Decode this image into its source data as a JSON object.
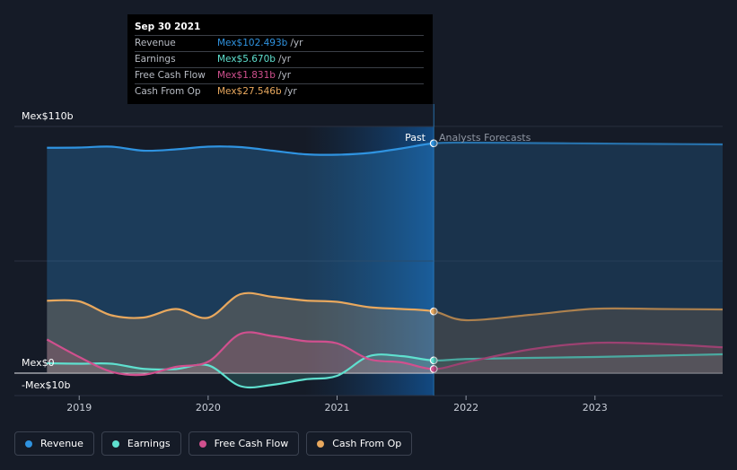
{
  "chart_data": {
    "type": "area",
    "currency_axis": {
      "top_label": "Mex$110b",
      "zero_label": "Mex$0",
      "bottom_label": "-Mex$10b"
    },
    "ylim": [
      -10,
      110
    ],
    "xlim": [
      2018.72,
      2023.99
    ],
    "x_ticks": [
      {
        "value": 2019.0,
        "label": "2019"
      },
      {
        "value": 2020.0,
        "label": "2020"
      },
      {
        "value": 2021.0,
        "label": "2021"
      },
      {
        "value": 2022.0,
        "label": "2022"
      },
      {
        "value": 2023.0,
        "label": "2023"
      }
    ],
    "present": 2021.75,
    "past_label": "Past",
    "forecast_label": "Analysts Forecasts",
    "series": [
      {
        "name": "Revenue",
        "color": "#2f93e0",
        "points": [
          [
            2018.75,
            100.5
          ],
          [
            2019.0,
            100.6
          ],
          [
            2019.25,
            101.0
          ],
          [
            2019.5,
            99.2
          ],
          [
            2019.75,
            99.8
          ],
          [
            2020.0,
            101.0
          ],
          [
            2020.25,
            100.8
          ],
          [
            2020.5,
            99.2
          ],
          [
            2020.75,
            97.6
          ],
          [
            2021.0,
            97.4
          ],
          [
            2021.25,
            98.2
          ],
          [
            2021.5,
            100.2
          ],
          [
            2021.75,
            102.49
          ],
          [
            2022.0,
            102.8
          ],
          [
            2022.5,
            102.6
          ],
          [
            2023.0,
            102.4
          ],
          [
            2023.5,
            102.2
          ],
          [
            2023.99,
            102.0
          ]
        ]
      },
      {
        "name": "Earnings",
        "color": "#5fe0cf",
        "points": [
          [
            2018.75,
            4.4
          ],
          [
            2019.0,
            4.2
          ],
          [
            2019.25,
            4.2
          ],
          [
            2019.5,
            1.9
          ],
          [
            2019.75,
            1.8
          ],
          [
            2020.0,
            3.5
          ],
          [
            2020.25,
            -5.8
          ],
          [
            2020.5,
            -5.2
          ],
          [
            2020.75,
            -2.8
          ],
          [
            2021.0,
            -1.2
          ],
          [
            2021.25,
            7.6
          ],
          [
            2021.5,
            7.6
          ],
          [
            2021.75,
            5.67
          ],
          [
            2022.0,
            6.3
          ],
          [
            2022.5,
            6.8
          ],
          [
            2023.0,
            7.2
          ],
          [
            2023.5,
            7.8
          ],
          [
            2023.99,
            8.4
          ]
        ]
      },
      {
        "name": "Free Cash Flow",
        "color": "#d0508e",
        "points": [
          [
            2018.75,
            15.0
          ],
          [
            2019.0,
            7.2
          ],
          [
            2019.25,
            0.6
          ],
          [
            2019.5,
            -0.7
          ],
          [
            2019.75,
            2.8
          ],
          [
            2020.0,
            5.1
          ],
          [
            2020.25,
            17.5
          ],
          [
            2020.5,
            16.5
          ],
          [
            2020.75,
            14.3
          ],
          [
            2021.0,
            13.3
          ],
          [
            2021.25,
            6.2
          ],
          [
            2021.5,
            4.8
          ],
          [
            2021.75,
            1.83
          ],
          [
            2022.0,
            4.8
          ],
          [
            2022.5,
            10.6
          ],
          [
            2023.0,
            13.5
          ],
          [
            2023.5,
            13.0
          ],
          [
            2023.99,
            11.5
          ]
        ]
      },
      {
        "name": "Cash From Op",
        "color": "#e8a85e",
        "points": [
          [
            2018.75,
            32.3
          ],
          [
            2019.0,
            32.0
          ],
          [
            2019.25,
            25.8
          ],
          [
            2019.5,
            24.8
          ],
          [
            2019.75,
            28.6
          ],
          [
            2020.0,
            24.7
          ],
          [
            2020.25,
            35.2
          ],
          [
            2020.5,
            34.0
          ],
          [
            2020.75,
            32.4
          ],
          [
            2021.0,
            31.8
          ],
          [
            2021.25,
            29.4
          ],
          [
            2021.5,
            28.6
          ],
          [
            2021.75,
            27.55
          ],
          [
            2022.0,
            23.6
          ],
          [
            2022.5,
            26.0
          ],
          [
            2023.0,
            28.7
          ],
          [
            2023.5,
            28.6
          ],
          [
            2023.99,
            28.4
          ]
        ]
      }
    ]
  },
  "tooltip": {
    "date": "Sep 30 2021",
    "rows": [
      {
        "label": "Revenue",
        "value": "Mex$102.493b",
        "unit": "/yr",
        "color": "#2f93e0"
      },
      {
        "label": "Earnings",
        "value": "Mex$5.670b",
        "unit": "/yr",
        "color": "#5fe0cf"
      },
      {
        "label": "Free Cash Flow",
        "value": "Mex$1.831b",
        "unit": "/yr",
        "color": "#d0508e"
      },
      {
        "label": "Cash From Op",
        "value": "Mex$27.546b",
        "unit": "/yr",
        "color": "#e8a85e"
      }
    ]
  },
  "legend": [
    {
      "label": "Revenue",
      "color": "#2f93e0"
    },
    {
      "label": "Earnings",
      "color": "#5fe0cf"
    },
    {
      "label": "Free Cash Flow",
      "color": "#d0508e"
    },
    {
      "label": "Cash From Op",
      "color": "#e8a85e"
    }
  ]
}
